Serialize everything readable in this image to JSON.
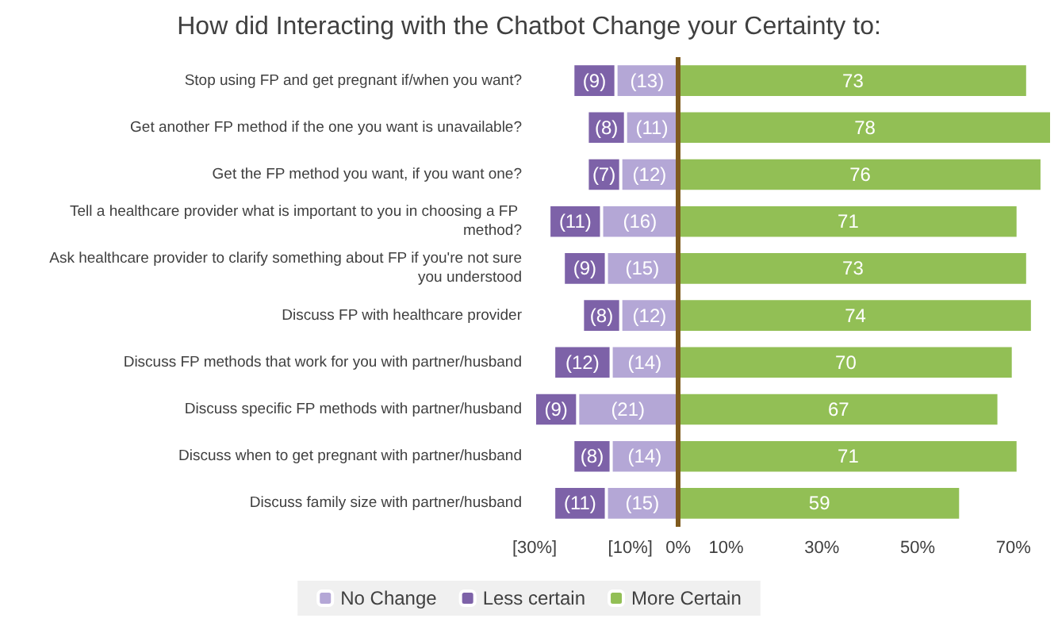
{
  "chart_data": {
    "type": "bar",
    "title": "How did Interacting with the Chatbot Change your Certainty to:",
    "orientation": "horizontal",
    "stacked": true,
    "categories": [
      "Stop using FP and get pregnant if/when you want?",
      "Get another FP method if the one you want is unavailable?",
      "Get the FP method you want, if you want one?",
      "Tell a healthcare provider what is important to you in choosing a FP method?",
      "Ask healthcare provider to clarify something about FP if you're not sure you understood",
      "Discuss FP with healthcare provider",
      "Discuss FP methods that work for you with partner/husband",
      "Discuss specific FP methods with partner/husband",
      "Discuss when to get pregnant with partner/husband",
      "Discuss family size with partner/husband"
    ],
    "series": [
      {
        "name": "No Change",
        "color": "#b4a7d6",
        "values": [
          -13,
          -11,
          -12,
          -16,
          -15,
          -12,
          -14,
          -21,
          -14,
          -15
        ],
        "value_labels": [
          "(13)",
          "(11)",
          "(12)",
          "(16)",
          "(15)",
          "(12)",
          "(14)",
          "(21)",
          "(14)",
          "(15)"
        ]
      },
      {
        "name": "Less certain",
        "color": "#7d62a8",
        "values": [
          -9,
          -8,
          -7,
          -11,
          -9,
          -8,
          -12,
          -9,
          -8,
          -11
        ],
        "value_labels": [
          "(9)",
          "(8)",
          "(7)",
          "(11)",
          "(9)",
          "(8)",
          "(12)",
          "(9)",
          "(8)",
          "(11)"
        ]
      },
      {
        "name": "More Certain",
        "color": "#92bf55",
        "values": [
          73,
          78,
          76,
          71,
          73,
          74,
          70,
          67,
          71,
          59
        ],
        "value_labels": [
          "73",
          "78",
          "76",
          "71",
          "73",
          "74",
          "70",
          "67",
          "71",
          "59"
        ]
      }
    ],
    "xlim": [
      -30,
      78
    ],
    "xticks": [
      {
        "value": -30,
        "label": "[30%]"
      },
      {
        "value": -10,
        "label": "[10%]"
      },
      {
        "value": 0,
        "label": "0%"
      },
      {
        "value": 10,
        "label": "10%"
      },
      {
        "value": 30,
        "label": "30%"
      },
      {
        "value": 50,
        "label": "50%"
      },
      {
        "value": 70,
        "label": "70%"
      }
    ],
    "ref_lines": [
      {
        "axis": "x",
        "value": 0,
        "color": "#7f5a1e"
      }
    ],
    "legend": "bottom",
    "grid": false
  }
}
